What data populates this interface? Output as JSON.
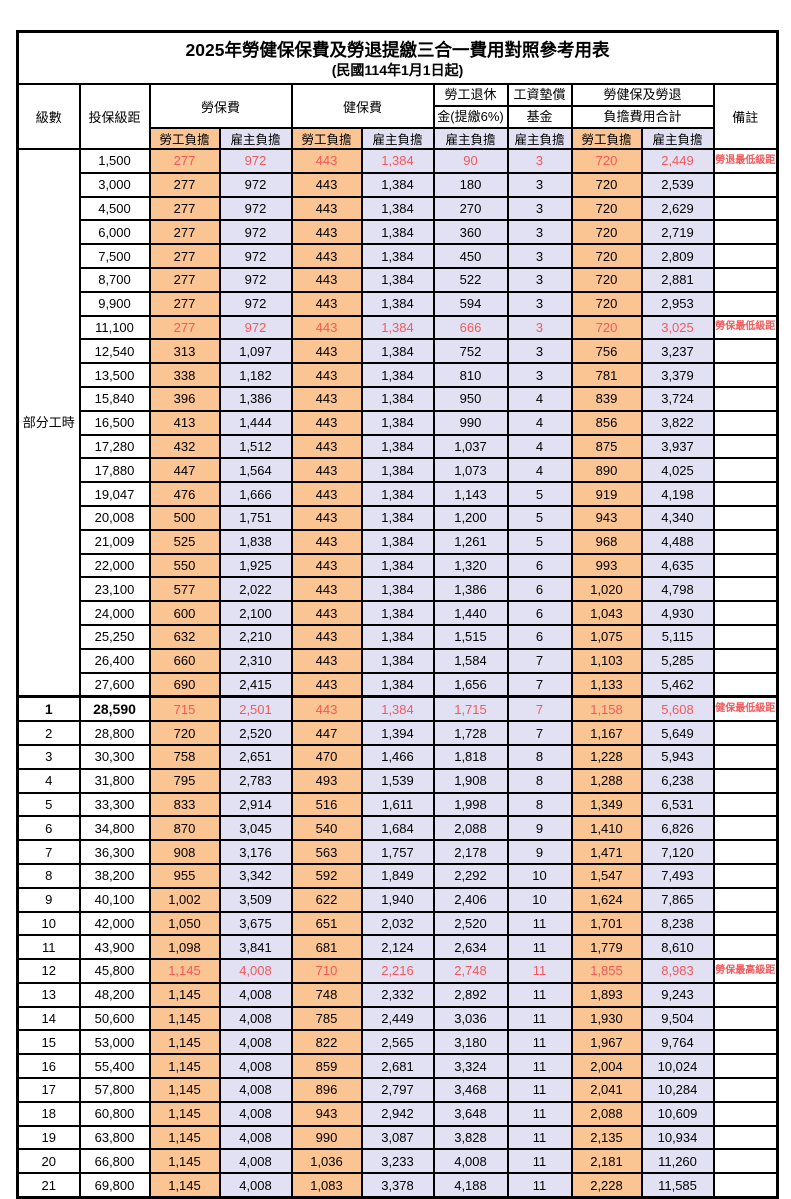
{
  "title": "2025年勞健保保費及勞退提繳三合一費用對照參考用表",
  "subtitle": "(民國114年1月1日起)",
  "columns": {
    "level": "級數",
    "bracket": "投保級距",
    "labor_ins": "勞保費",
    "health_ins": "健保費",
    "pension_top": "勞工退休",
    "pension_bottom": "金(提繳6%)",
    "wage_fund_top": "工資墊償",
    "wage_fund_bottom": "基金",
    "total_top": "勞健保及勞退",
    "total_bottom": "負擔費用合計",
    "remark": "備註",
    "employee_share": "勞工負擔",
    "employer_share": "雇主負擔"
  },
  "part_time": {
    "label": "部分工時",
    "row_count": 23
  },
  "colors": {
    "employee_bg": "#FAC493",
    "employer_bg": "#E2E0F3",
    "highlight_red": "#F2595B",
    "border": "#000000"
  },
  "rows": [
    {
      "level": "",
      "bracket": "1,500",
      "values": [
        "277",
        "972",
        "443",
        "1,384",
        "90",
        "3",
        "720",
        "2,449"
      ],
      "remark": "勞退最低級距",
      "red": true
    },
    {
      "level": "",
      "bracket": "3,000",
      "values": [
        "277",
        "972",
        "443",
        "1,384",
        "180",
        "3",
        "720",
        "2,539"
      ],
      "remark": ""
    },
    {
      "level": "",
      "bracket": "4,500",
      "values": [
        "277",
        "972",
        "443",
        "1,384",
        "270",
        "3",
        "720",
        "2,629"
      ],
      "remark": ""
    },
    {
      "level": "",
      "bracket": "6,000",
      "values": [
        "277",
        "972",
        "443",
        "1,384",
        "360",
        "3",
        "720",
        "2,719"
      ],
      "remark": ""
    },
    {
      "level": "",
      "bracket": "7,500",
      "values": [
        "277",
        "972",
        "443",
        "1,384",
        "450",
        "3",
        "720",
        "2,809"
      ],
      "remark": ""
    },
    {
      "level": "",
      "bracket": "8,700",
      "values": [
        "277",
        "972",
        "443",
        "1,384",
        "522",
        "3",
        "720",
        "2,881"
      ],
      "remark": ""
    },
    {
      "level": "",
      "bracket": "9,900",
      "values": [
        "277",
        "972",
        "443",
        "1,384",
        "594",
        "3",
        "720",
        "2,953"
      ],
      "remark": ""
    },
    {
      "level": "",
      "bracket": "11,100",
      "values": [
        "277",
        "972",
        "443",
        "1,384",
        "666",
        "3",
        "720",
        "3,025"
      ],
      "remark": "勞保最低級距",
      "red": true
    },
    {
      "level": "",
      "bracket": "12,540",
      "values": [
        "313",
        "1,097",
        "443",
        "1,384",
        "752",
        "3",
        "756",
        "3,237"
      ],
      "remark": ""
    },
    {
      "level": "",
      "bracket": "13,500",
      "values": [
        "338",
        "1,182",
        "443",
        "1,384",
        "810",
        "3",
        "781",
        "3,379"
      ],
      "remark": ""
    },
    {
      "level": "",
      "bracket": "15,840",
      "values": [
        "396",
        "1,386",
        "443",
        "1,384",
        "950",
        "4",
        "839",
        "3,724"
      ],
      "remark": ""
    },
    {
      "level": "",
      "bracket": "16,500",
      "values": [
        "413",
        "1,444",
        "443",
        "1,384",
        "990",
        "4",
        "856",
        "3,822"
      ],
      "remark": ""
    },
    {
      "level": "",
      "bracket": "17,280",
      "values": [
        "432",
        "1,512",
        "443",
        "1,384",
        "1,037",
        "4",
        "875",
        "3,937"
      ],
      "remark": ""
    },
    {
      "level": "",
      "bracket": "17,880",
      "values": [
        "447",
        "1,564",
        "443",
        "1,384",
        "1,073",
        "4",
        "890",
        "4,025"
      ],
      "remark": ""
    },
    {
      "level": "",
      "bracket": "19,047",
      "values": [
        "476",
        "1,666",
        "443",
        "1,384",
        "1,143",
        "5",
        "919",
        "4,198"
      ],
      "remark": ""
    },
    {
      "level": "",
      "bracket": "20,008",
      "values": [
        "500",
        "1,751",
        "443",
        "1,384",
        "1,200",
        "5",
        "943",
        "4,340"
      ],
      "remark": ""
    },
    {
      "level": "",
      "bracket": "21,009",
      "values": [
        "525",
        "1,838",
        "443",
        "1,384",
        "1,261",
        "5",
        "968",
        "4,488"
      ],
      "remark": ""
    },
    {
      "level": "",
      "bracket": "22,000",
      "values": [
        "550",
        "1,925",
        "443",
        "1,384",
        "1,320",
        "6",
        "993",
        "4,635"
      ],
      "remark": ""
    },
    {
      "level": "",
      "bracket": "23,100",
      "values": [
        "577",
        "2,022",
        "443",
        "1,384",
        "1,386",
        "6",
        "1,020",
        "4,798"
      ],
      "remark": ""
    },
    {
      "level": "",
      "bracket": "24,000",
      "values": [
        "600",
        "2,100",
        "443",
        "1,384",
        "1,440",
        "6",
        "1,043",
        "4,930"
      ],
      "remark": ""
    },
    {
      "level": "",
      "bracket": "25,250",
      "values": [
        "632",
        "2,210",
        "443",
        "1,384",
        "1,515",
        "6",
        "1,075",
        "5,115"
      ],
      "remark": ""
    },
    {
      "level": "",
      "bracket": "26,400",
      "values": [
        "660",
        "2,310",
        "443",
        "1,384",
        "1,584",
        "7",
        "1,103",
        "5,285"
      ],
      "remark": ""
    },
    {
      "level": "",
      "bracket": "27,600",
      "values": [
        "690",
        "2,415",
        "443",
        "1,384",
        "1,656",
        "7",
        "1,133",
        "5,462"
      ],
      "remark": ""
    },
    {
      "level": "1",
      "bracket": "28,590",
      "values": [
        "715",
        "2,501",
        "443",
        "1,384",
        "1,715",
        "7",
        "1,158",
        "5,608"
      ],
      "remark": "健保最低級距",
      "red": true,
      "bold": true
    },
    {
      "level": "2",
      "bracket": "28,800",
      "values": [
        "720",
        "2,520",
        "447",
        "1,394",
        "1,728",
        "7",
        "1,167",
        "5,649"
      ],
      "remark": ""
    },
    {
      "level": "3",
      "bracket": "30,300",
      "values": [
        "758",
        "2,651",
        "470",
        "1,466",
        "1,818",
        "8",
        "1,228",
        "5,943"
      ],
      "remark": ""
    },
    {
      "level": "4",
      "bracket": "31,800",
      "values": [
        "795",
        "2,783",
        "493",
        "1,539",
        "1,908",
        "8",
        "1,288",
        "6,238"
      ],
      "remark": ""
    },
    {
      "level": "5",
      "bracket": "33,300",
      "values": [
        "833",
        "2,914",
        "516",
        "1,611",
        "1,998",
        "8",
        "1,349",
        "6,531"
      ],
      "remark": ""
    },
    {
      "level": "6",
      "bracket": "34,800",
      "values": [
        "870",
        "3,045",
        "540",
        "1,684",
        "2,088",
        "9",
        "1,410",
        "6,826"
      ],
      "remark": ""
    },
    {
      "level": "7",
      "bracket": "36,300",
      "values": [
        "908",
        "3,176",
        "563",
        "1,757",
        "2,178",
        "9",
        "1,471",
        "7,120"
      ],
      "remark": ""
    },
    {
      "level": "8",
      "bracket": "38,200",
      "values": [
        "955",
        "3,342",
        "592",
        "1,849",
        "2,292",
        "10",
        "1,547",
        "7,493"
      ],
      "remark": ""
    },
    {
      "level": "9",
      "bracket": "40,100",
      "values": [
        "1,002",
        "3,509",
        "622",
        "1,940",
        "2,406",
        "10",
        "1,624",
        "7,865"
      ],
      "remark": ""
    },
    {
      "level": "10",
      "bracket": "42,000",
      "values": [
        "1,050",
        "3,675",
        "651",
        "2,032",
        "2,520",
        "11",
        "1,701",
        "8,238"
      ],
      "remark": ""
    },
    {
      "level": "11",
      "bracket": "43,900",
      "values": [
        "1,098",
        "3,841",
        "681",
        "2,124",
        "2,634",
        "11",
        "1,779",
        "8,610"
      ],
      "remark": ""
    },
    {
      "level": "12",
      "bracket": "45,800",
      "values": [
        "1,145",
        "4,008",
        "710",
        "2,216",
        "2,748",
        "11",
        "1,855",
        "8,983"
      ],
      "remark": "勞保最高級距",
      "red": true
    },
    {
      "level": "13",
      "bracket": "48,200",
      "values": [
        "1,145",
        "4,008",
        "748",
        "2,332",
        "2,892",
        "11",
        "1,893",
        "9,243"
      ],
      "remark": ""
    },
    {
      "level": "14",
      "bracket": "50,600",
      "values": [
        "1,145",
        "4,008",
        "785",
        "2,449",
        "3,036",
        "11",
        "1,930",
        "9,504"
      ],
      "remark": ""
    },
    {
      "level": "15",
      "bracket": "53,000",
      "values": [
        "1,145",
        "4,008",
        "822",
        "2,565",
        "3,180",
        "11",
        "1,967",
        "9,764"
      ],
      "remark": ""
    },
    {
      "level": "16",
      "bracket": "55,400",
      "values": [
        "1,145",
        "4,008",
        "859",
        "2,681",
        "3,324",
        "11",
        "2,004",
        "10,024"
      ],
      "remark": ""
    },
    {
      "level": "17",
      "bracket": "57,800",
      "values": [
        "1,145",
        "4,008",
        "896",
        "2,797",
        "3,468",
        "11",
        "2,041",
        "10,284"
      ],
      "remark": ""
    },
    {
      "level": "18",
      "bracket": "60,800",
      "values": [
        "1,145",
        "4,008",
        "943",
        "2,942",
        "3,648",
        "11",
        "2,088",
        "10,609"
      ],
      "remark": ""
    },
    {
      "level": "19",
      "bracket": "63,800",
      "values": [
        "1,145",
        "4,008",
        "990",
        "3,087",
        "3,828",
        "11",
        "2,135",
        "10,934"
      ],
      "remark": ""
    },
    {
      "level": "20",
      "bracket": "66,800",
      "values": [
        "1,145",
        "4,008",
        "1,036",
        "3,233",
        "4,008",
        "11",
        "2,181",
        "11,260"
      ],
      "remark": ""
    },
    {
      "level": "21",
      "bracket": "69,800",
      "values": [
        "1,145",
        "4,008",
        "1,083",
        "3,378",
        "4,188",
        "11",
        "2,228",
        "11,585"
      ],
      "remark": ""
    }
  ]
}
